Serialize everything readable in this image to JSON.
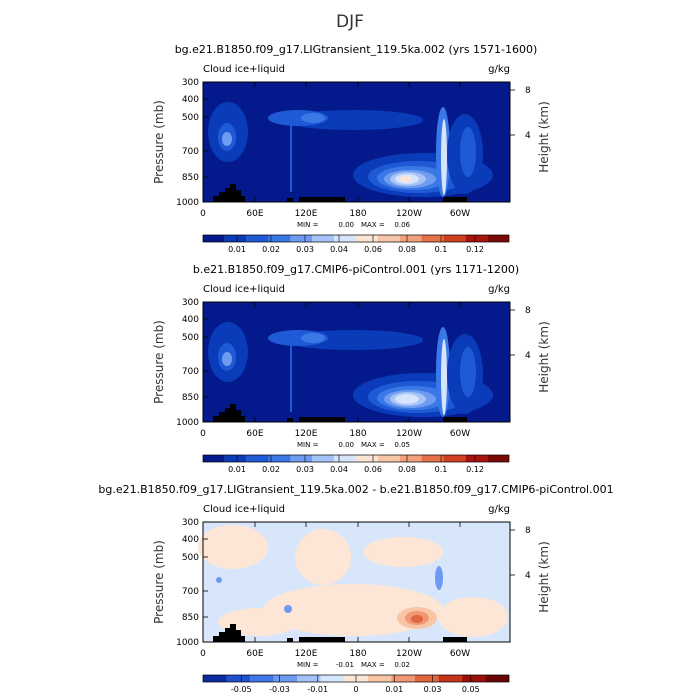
{
  "figure": {
    "title": "DJF"
  },
  "colors": {
    "abs_scale": [
      "#041a8c",
      "#0a3bb8",
      "#1f5ad6",
      "#3a78e6",
      "#6f9cf0",
      "#a6c4f7",
      "#d6e5fb",
      "#fbe4d3",
      "#f7c6a8",
      "#f0a07a",
      "#e47148",
      "#cf4020",
      "#a8140e",
      "#7a0a08"
    ],
    "diff_scale": [
      "#0b2aa0",
      "#1f50d0",
      "#3f76e8",
      "#6e9af2",
      "#a4c2f8",
      "#d8e6fc",
      "#fde6d6",
      "#f8c5a6",
      "#f09873",
      "#e06640",
      "#c43418",
      "#9b1008",
      "#6a0505"
    ],
    "terrain": "#000000"
  },
  "chart_data": [
    {
      "type": "heatmap",
      "title": "bg.e21.B1850.f09_g17.LIGtransient_119.5ka.002 (yrs 1571-1600)",
      "variable_label": "Cloud ice+liquid",
      "units_label": "g/kg",
      "ylabel": "Pressure (mb)",
      "y2label": "Height (km)",
      "x_ticks": [
        "0",
        "60E",
        "120E",
        "180",
        "120W",
        "60W"
      ],
      "y_ticks": [
        "300",
        "400",
        "500",
        "700",
        "850",
        "1000"
      ],
      "y2_ticks": [
        "8",
        "4"
      ],
      "min_label": "MIN =",
      "min_value": "0.00",
      "max_label": "MAX =",
      "max_value": "0.06",
      "colorbar_labels": [
        "0.01",
        "0.02",
        "0.03",
        "0.04",
        "0.06",
        "0.08",
        "0.1",
        "0.12"
      ]
    },
    {
      "type": "heatmap",
      "title": "b.e21.B1850.f09_g17.CMIP6-piControl.001 (yrs 1171-1200)",
      "variable_label": "Cloud ice+liquid",
      "units_label": "g/kg",
      "ylabel": "Pressure (mb)",
      "y2label": "Height (km)",
      "x_ticks": [
        "0",
        "60E",
        "120E",
        "180",
        "120W",
        "60W"
      ],
      "y_ticks": [
        "300",
        "400",
        "500",
        "700",
        "850",
        "1000"
      ],
      "y2_ticks": [
        "8",
        "4"
      ],
      "min_label": "MIN =",
      "min_value": "0.00",
      "max_label": "MAX =",
      "max_value": "0.05",
      "colorbar_labels": [
        "0.01",
        "0.02",
        "0.03",
        "0.04",
        "0.06",
        "0.08",
        "0.1",
        "0.12"
      ]
    },
    {
      "type": "heatmap",
      "title": "bg.e21.B1850.f09_g17.LIGtransient_119.5ka.002 - b.e21.B1850.f09_g17.CMIP6-piControl.001",
      "variable_label": "Cloud ice+liquid",
      "units_label": "g/kg",
      "ylabel": "Pressure (mb)",
      "y2label": "Height (km)",
      "x_ticks": [
        "0",
        "60E",
        "120E",
        "180",
        "120W",
        "60W"
      ],
      "y_ticks": [
        "300",
        "400",
        "500",
        "700",
        "850",
        "1000"
      ],
      "y2_ticks": [
        "8",
        "4"
      ],
      "min_label": "MIN =",
      "min_value": "-0.01",
      "max_label": "MAX =",
      "max_value": "0.02",
      "colorbar_labels": [
        "-0.05",
        "-0.03",
        "-0.01",
        "0",
        "0.01",
        "0.03",
        "0.05"
      ]
    }
  ]
}
